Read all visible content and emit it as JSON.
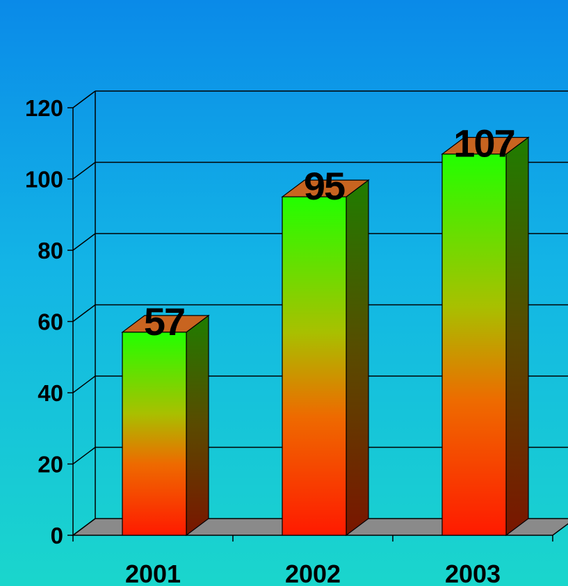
{
  "chart_data": {
    "type": "bar",
    "categories": [
      "2001",
      "2002",
      "2003"
    ],
    "values": [
      57,
      95,
      107
    ],
    "data_labels": [
      "57",
      "95",
      "107"
    ],
    "yticks": [
      0,
      20,
      40,
      60,
      80,
      100,
      120
    ],
    "ylim": [
      0,
      120
    ],
    "grid": true,
    "legend": "none",
    "colors": {
      "bar_bottom": "#ff1a00",
      "bar_top": "#22ff00",
      "side_top": "#1f7d00",
      "side_bottom": "#7a1500",
      "cap": "#c86420",
      "floor": "#8a8a8a",
      "background_top": "#0a8ae8",
      "background_bottom": "#1ad6cc"
    }
  }
}
